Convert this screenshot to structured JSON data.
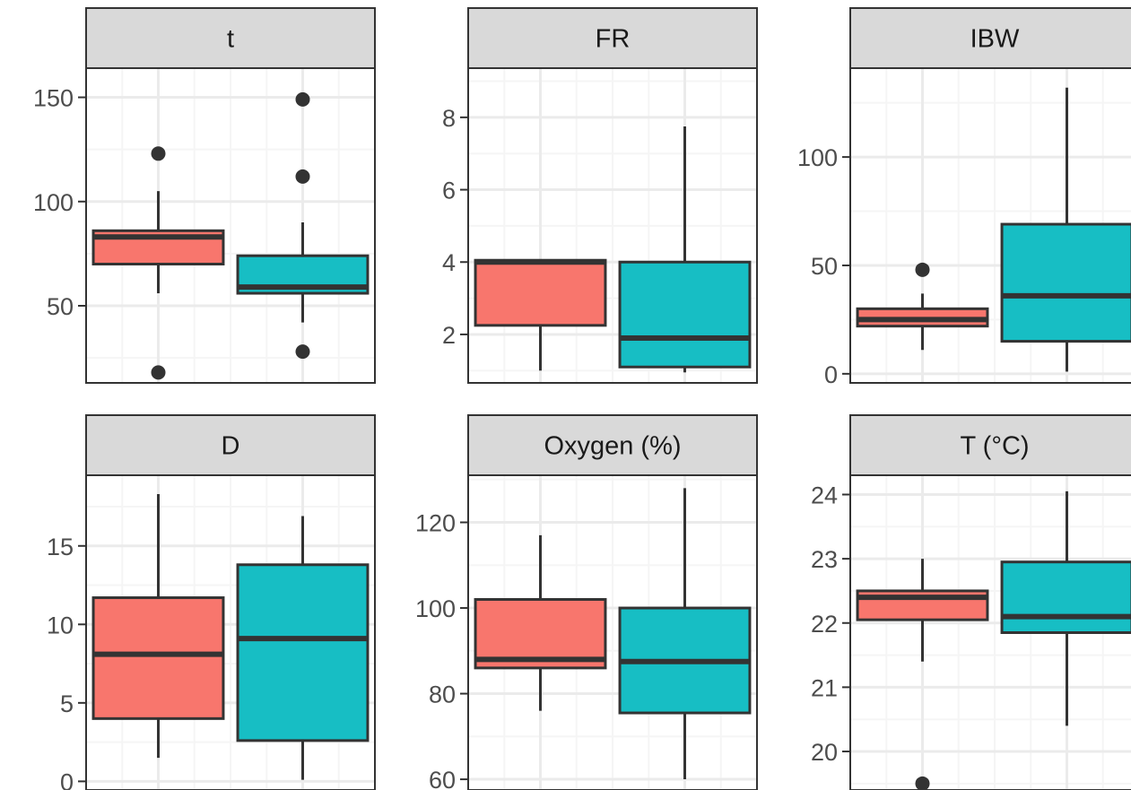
{
  "colors": {
    "group1": "#F8766D",
    "group2": "#17BEC4",
    "outline": "#333333",
    "grid_major": "#EBEBEB",
    "grid_minor": "#F5F5F5",
    "strip_fill": "#D9D9D9"
  },
  "chart_data": [
    {
      "type": "box",
      "title": "t",
      "ylim": [
        13,
        164
      ],
      "yticks": [
        50,
        100,
        150
      ],
      "ytick_labels": [
        "50",
        "100",
        "150"
      ],
      "series": [
        {
          "color": "group1",
          "lower_whisker": 56,
          "q1": 70,
          "median": 83,
          "q3": 86,
          "upper_whisker": 105,
          "outliers": [
            18,
            123
          ]
        },
        {
          "color": "group2",
          "lower_whisker": 42,
          "q1": 56,
          "median": 59,
          "q3": 74,
          "upper_whisker": 90,
          "outliers": [
            28,
            112,
            149
          ]
        }
      ]
    },
    {
      "type": "box",
      "title": "FR",
      "ylim": [
        0.66,
        9.36
      ],
      "yticks": [
        2,
        4,
        6,
        8
      ],
      "ytick_labels": [
        "2",
        "4",
        "6",
        "8"
      ],
      "series": [
        {
          "color": "group1",
          "lower_whisker": 1.0,
          "q1": 2.25,
          "median": 4.0,
          "q3": 4.05,
          "upper_whisker": 4.05,
          "outliers": []
        },
        {
          "color": "group2",
          "lower_whisker": 0.95,
          "q1": 1.1,
          "median": 1.9,
          "q3": 4.0,
          "upper_whisker": 7.75,
          "outliers": []
        }
      ]
    },
    {
      "type": "box",
      "title": "IBW",
      "ylim": [
        -4.2,
        141
      ],
      "yticks": [
        0,
        50,
        100
      ],
      "ytick_labels": [
        "0",
        "50",
        "100"
      ],
      "series": [
        {
          "color": "group1",
          "lower_whisker": 11,
          "q1": 22,
          "median": 25,
          "q3": 30,
          "upper_whisker": 37,
          "outliers": [
            48
          ]
        },
        {
          "color": "group2",
          "lower_whisker": 1,
          "q1": 15,
          "median": 36,
          "q3": 69,
          "upper_whisker": 132,
          "outliers": []
        }
      ]
    },
    {
      "type": "box",
      "title": "D",
      "ylim": [
        -0.55,
        19.5
      ],
      "yticks": [
        0,
        5,
        10,
        15
      ],
      "ytick_labels": [
        "0",
        "5",
        "10",
        "15"
      ],
      "series": [
        {
          "color": "group1",
          "lower_whisker": 1.5,
          "q1": 4.0,
          "median": 8.1,
          "q3": 11.7,
          "upper_whisker": 18.3,
          "outliers": []
        },
        {
          "color": "group2",
          "lower_whisker": 0.1,
          "q1": 2.6,
          "median": 9.1,
          "q3": 13.8,
          "upper_whisker": 16.9,
          "outliers": []
        }
      ]
    },
    {
      "type": "box",
      "title": "Oxygen (%)",
      "ylim": [
        57.5,
        131
      ],
      "yticks": [
        60,
        80,
        100,
        120
      ],
      "ytick_labels": [
        "60",
        "80",
        "100",
        "120"
      ],
      "series": [
        {
          "color": "group1",
          "lower_whisker": 76,
          "q1": 86,
          "median": 88,
          "q3": 102,
          "upper_whisker": 117,
          "outliers": []
        },
        {
          "color": "group2",
          "lower_whisker": 60,
          "q1": 75.5,
          "median": 87.5,
          "q3": 100,
          "upper_whisker": 128,
          "outliers": []
        }
      ]
    },
    {
      "type": "box",
      "title": "T (°C)",
      "ylim": [
        19.4,
        24.3
      ],
      "yticks": [
        20,
        21,
        22,
        23,
        24
      ],
      "ytick_labels": [
        "20",
        "21",
        "22",
        "23",
        "24"
      ],
      "series": [
        {
          "color": "group1",
          "lower_whisker": 21.4,
          "q1": 22.05,
          "median": 22.4,
          "q3": 22.5,
          "upper_whisker": 23.0,
          "outliers": [
            19.5
          ]
        },
        {
          "color": "group2",
          "lower_whisker": 20.4,
          "q1": 21.85,
          "median": 22.1,
          "q3": 22.95,
          "upper_whisker": 24.05,
          "outliers": []
        }
      ]
    }
  ]
}
